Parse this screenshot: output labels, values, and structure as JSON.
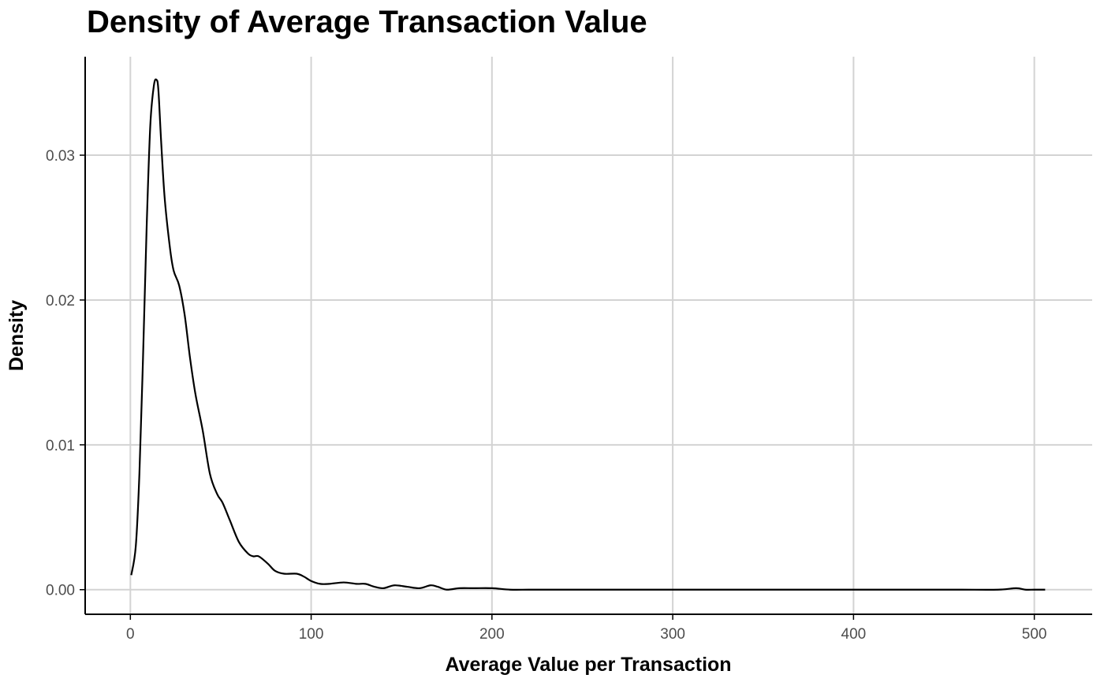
{
  "chart_data": {
    "type": "line",
    "title": "Density of Average Transaction Value",
    "xlabel": "Average Value per Transaction",
    "ylabel": "Density",
    "xlim": [
      -25,
      532
    ],
    "ylim": [
      -0.0017,
      0.0368
    ],
    "x_ticks": [
      0,
      100,
      200,
      300,
      400,
      500
    ],
    "x_tick_labels": [
      "0",
      "100",
      "200",
      "300",
      "400",
      "500"
    ],
    "y_ticks": [
      0.0,
      0.01,
      0.02,
      0.03
    ],
    "y_tick_labels": [
      "0.00",
      "0.01",
      "0.02",
      "0.03"
    ],
    "grid": true,
    "colors": {
      "line": "#000000",
      "grid": "#d3d3d3",
      "axis": "#000000",
      "tick_label": "#4d4d4d"
    },
    "series": [
      {
        "x": [
          0.5,
          3,
          5,
          7,
          9,
          11,
          13,
          14.5,
          15.5,
          17,
          19,
          22,
          24,
          27,
          30,
          33,
          36,
          40,
          44,
          48,
          51,
          55,
          60,
          65,
          68,
          71,
          76,
          80,
          85,
          92,
          96,
          100,
          105,
          110,
          118,
          125,
          130,
          135,
          140,
          146,
          153,
          160,
          166,
          170,
          175,
          182,
          190,
          200,
          210,
          220,
          230,
          240,
          250,
          260,
          270,
          280,
          290,
          300,
          310,
          320,
          330,
          340,
          350,
          360,
          380,
          400,
          420,
          440,
          460,
          480,
          490,
          495,
          500,
          506
        ],
        "y": [
          0.001,
          0.003,
          0.008,
          0.016,
          0.025,
          0.032,
          0.0348,
          0.0352,
          0.0345,
          0.031,
          0.027,
          0.0235,
          0.022,
          0.021,
          0.019,
          0.016,
          0.0135,
          0.011,
          0.008,
          0.0066,
          0.006,
          0.0048,
          0.0033,
          0.0025,
          0.0023,
          0.0023,
          0.0018,
          0.0013,
          0.0011,
          0.0011,
          0.0009,
          0.0006,
          0.0004,
          0.0004,
          0.0005,
          0.0004,
          0.0004,
          0.0002,
          0.0001,
          0.0003,
          0.0002,
          0.0001,
          0.0003,
          0.0002,
          0.0,
          0.0001,
          0.0001,
          0.0001,
          0.0,
          0.0,
          0.0,
          0.0,
          0.0,
          0.0,
          0.0,
          0.0,
          0.0,
          0.0,
          0.0,
          0.0,
          0.0,
          0.0,
          0.0,
          0.0,
          0.0,
          0.0,
          0.0,
          0.0,
          0.0,
          0.0,
          0.0001,
          0.0,
          0.0,
          0.0
        ]
      }
    ]
  }
}
